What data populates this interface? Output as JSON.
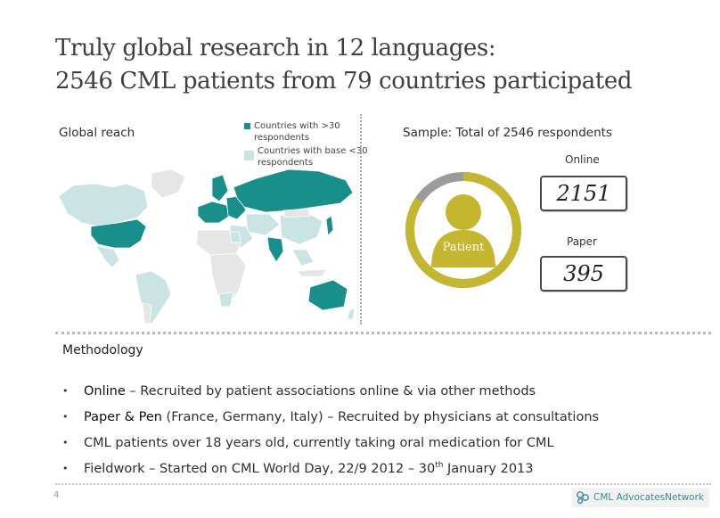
{
  "title": {
    "line1": "Truly global research in 12 languages:",
    "line2": "2546 CML patients from 79 countries participated"
  },
  "global_reach": {
    "label": "Global reach",
    "legend": [
      {
        "label": "Countries with >30 respondents",
        "color": "#188f8a"
      },
      {
        "label": "Countries with base <30 respondents",
        "color": "#c9e4e2"
      }
    ]
  },
  "sample": {
    "label": "Sample: Total of 2546 respondents",
    "center_label": "Patient",
    "online_label": "Online",
    "online_value": "2151",
    "paper_label": "Paper",
    "paper_value": "395",
    "online_count": 2151,
    "paper_count": 395,
    "colors": {
      "online": "#c4b62f",
      "paper": "#9b9b9b"
    }
  },
  "methodology": {
    "heading": "Methodology",
    "items": [
      {
        "bold": "Online",
        "text": " – Recruited by patient associations online & via other methods"
      },
      {
        "bold": "Paper & Pen",
        "text": " (France, Germany, Italy) – Recruited by physicians at consultations"
      },
      {
        "bold": "",
        "text": "CML patients over 18 years old, currently taking oral medication for CML"
      }
    ],
    "last_item": {
      "pre": "Fieldwork – Started on CML World Day, 22/9 2012 – 30",
      "sup": "th",
      "post": " January 2013"
    }
  },
  "footer": {
    "page_number": "4",
    "logo_text": "CML AdvocatesNetwork"
  }
}
